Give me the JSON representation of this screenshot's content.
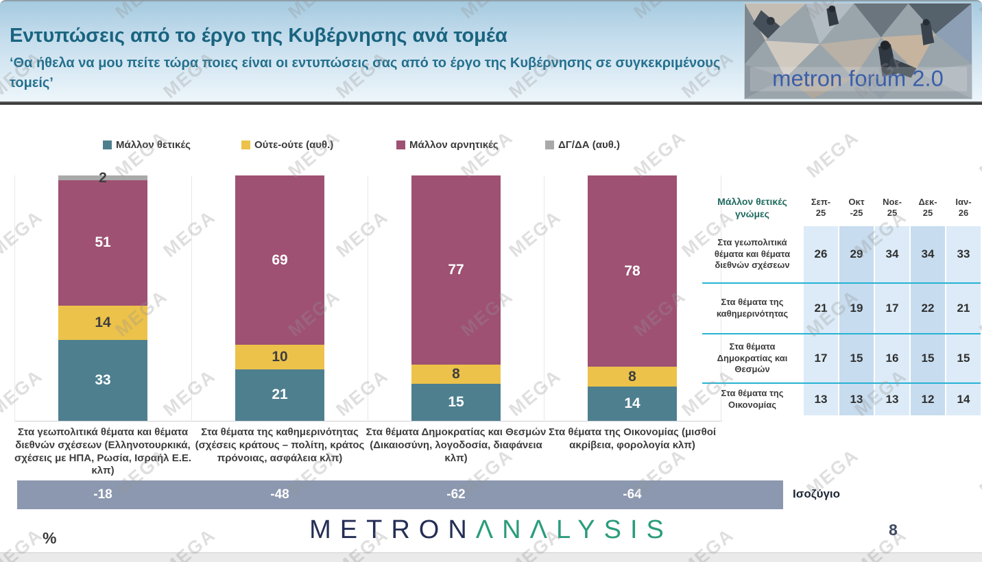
{
  "header": {
    "title": "Εντυπώσεις από το έργο της Κυβέρνησης ανά τομέα",
    "subtitle": "‘Θα ήθελα να μου πείτε τώρα ποιες είναι οι εντυπώσεις σας από το έργο της Κυβέρνησης σε συγκεκριμένους τομείς’",
    "logo_text": "metron forum 2.0"
  },
  "watermark_text": "MEGA",
  "chart_data": {
    "type": "bar",
    "stacked": true,
    "unit": "%",
    "ylim": [
      0,
      100
    ],
    "legend_position": "top",
    "categories": [
      "Στα γεωπολιτικά θέματα και θέματα διεθνών σχέσεων (Ελληνοτουρκικά, σχέσεις με ΗΠΑ, Ρωσία, Ισραήλ Ε.Ε. κλπ)",
      "Στα θέματα της καθημερινότητας (σχέσεις κράτους – πολίτη, κράτος πρόνοιας, ασφάλεια κλπ)",
      "Στα θέματα Δημοκρατίας και Θεσμών (Δικαιοσύνη, λογοδοσία, διαφάνεια κλπ)",
      "Στα θέματα της Οικονομίας (μισθοί ακρίβεια, φορολογία κλπ)"
    ],
    "series": [
      {
        "name": "Μάλλον θετικές",
        "color": "#4d7f8f",
        "label_color": "#ffffff",
        "values": [
          33,
          21,
          15,
          14
        ]
      },
      {
        "name": "Ούτε-ούτε  (αυθ.)",
        "color": "#ecc24a",
        "label_color": "#3f3f3f",
        "values": [
          14,
          10,
          8,
          8
        ]
      },
      {
        "name": "Μάλλον αρνητικές",
        "color": "#9e5173",
        "label_color": "#ffffff",
        "values": [
          51,
          69,
          77,
          78
        ]
      },
      {
        "name": "ΔΓ/ΔΑ (αυθ.)",
        "color": "#a9a9a9",
        "label_color": "#3f3f3f",
        "values": [
          2,
          0,
          0,
          0
        ]
      }
    ],
    "balance": {
      "label": "Ισοζύγιο",
      "values": [
        "-18",
        "-48",
        "-62",
        "-64"
      ]
    }
  },
  "table": {
    "title": "Μάλλον θετικές\nγνώμες",
    "columns": [
      "Σεπ-\n25",
      "Οκτ\n-25",
      "Νοε-\n25",
      "Δεκ-\n25",
      "Ιαν-\n26"
    ],
    "rows": [
      {
        "label": "Στα γεωπολιτικά θέματα και θέματα διεθνών σχέσεων",
        "values": [
          26,
          29,
          34,
          34,
          33
        ]
      },
      {
        "label": "Στα θέματα της καθημερινότητας",
        "values": [
          21,
          19,
          17,
          22,
          21
        ]
      },
      {
        "label": "Στα θέματα Δημοκρατίας και Θεσμών",
        "values": [
          17,
          15,
          16,
          15,
          15
        ]
      },
      {
        "label": "Στα θέματα της Οικονομίας",
        "values": [
          13,
          13,
          13,
          12,
          14
        ]
      }
    ]
  },
  "footer": {
    "logo_part1": "METRON",
    "logo_part2": "ΛNΛLYSIS",
    "percent_sign": "%",
    "page_number": "8"
  }
}
